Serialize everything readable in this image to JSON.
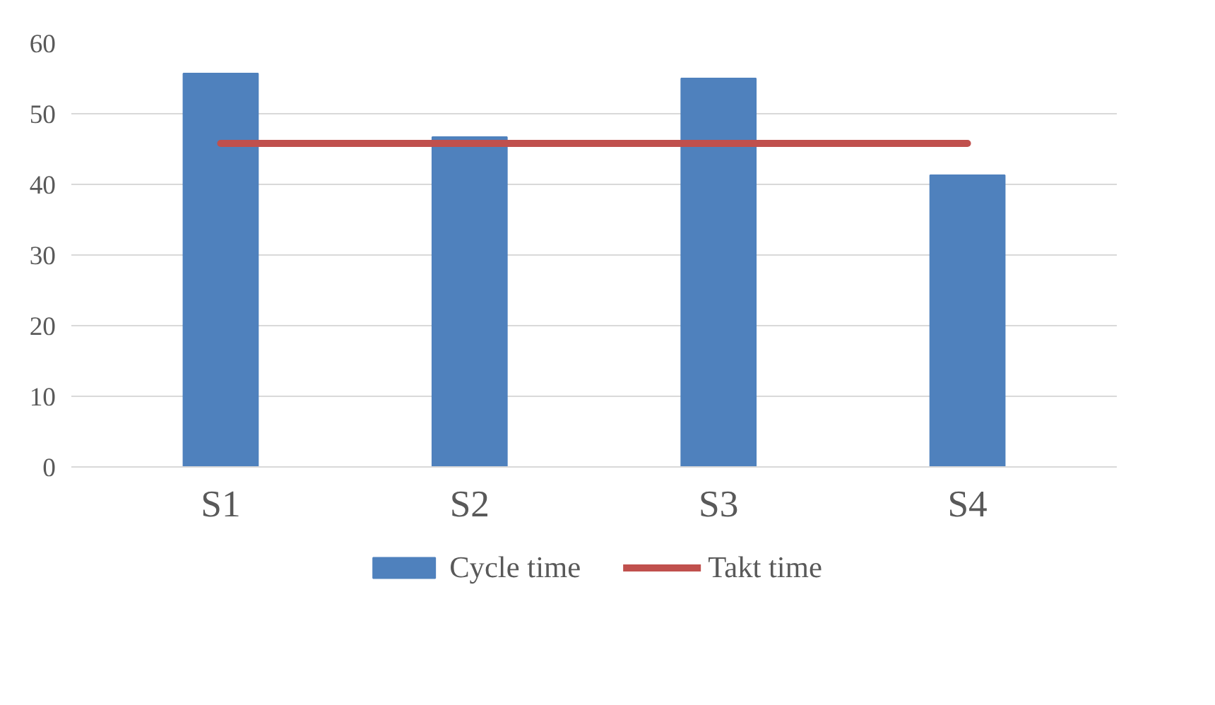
{
  "chart_data": {
    "type": "bar",
    "categories": [
      "S1",
      "S2",
      "S3",
      "S4"
    ],
    "series": [
      {
        "name": "Cycle time",
        "color": "#4f81bd",
        "values": [
          55.7,
          46.7,
          55.0,
          41.3
        ]
      },
      {
        "name": "Takt time",
        "type": "line",
        "color": "#c0504d",
        "values": [
          45.8,
          45.8,
          45.8,
          45.8
        ]
      }
    ],
    "ylim": [
      0,
      60
    ],
    "yticks": [
      0,
      10,
      20,
      30,
      40,
      50,
      60
    ],
    "grid": "y",
    "legend": "bottom"
  }
}
